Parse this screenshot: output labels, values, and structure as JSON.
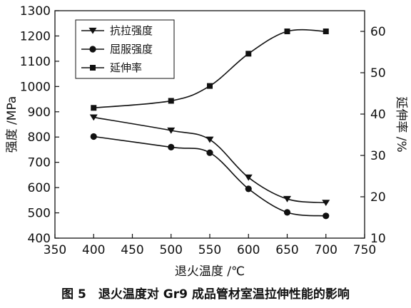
{
  "chart_data": {
    "type": "line",
    "x": [
      400,
      500,
      550,
      600,
      650,
      700
    ],
    "xlabel": "退火温度 /℃",
    "ylabel": "强度 /MPa",
    "y2label": "延伸率 /%",
    "xlim": [
      350,
      750
    ],
    "ylim": [
      400,
      1300
    ],
    "y2lim": [
      10,
      65
    ],
    "x_ticks": [
      "350",
      "400",
      "450",
      "500",
      "550",
      "600",
      "650",
      "700",
      "750"
    ],
    "y_ticks": [
      "400",
      "500",
      "600",
      "700",
      "800",
      "900",
      "1000",
      "1100",
      "1200",
      "1300"
    ],
    "y2_ticks": [
      "10",
      "20",
      "30",
      "40",
      "50",
      "60"
    ],
    "grid": false,
    "legend": "top-left",
    "caption": "图 5　退火温度对 Gr9 成品管材室温拉伸性能的影响",
    "series": [
      {
        "name": "抗拉强度",
        "axis": "left",
        "marker": "triangle-down",
        "values": [
          878,
          826,
          790,
          640,
          555,
          540
        ]
      },
      {
        "name": "屈服强度",
        "axis": "left",
        "marker": "circle",
        "values": [
          802,
          760,
          738,
          595,
          502,
          488
        ]
      },
      {
        "name": "延伸率",
        "axis": "right",
        "marker": "square",
        "values": [
          41.5,
          43.2,
          46.8,
          54.6,
          60.0,
          60.0
        ]
      }
    ]
  }
}
